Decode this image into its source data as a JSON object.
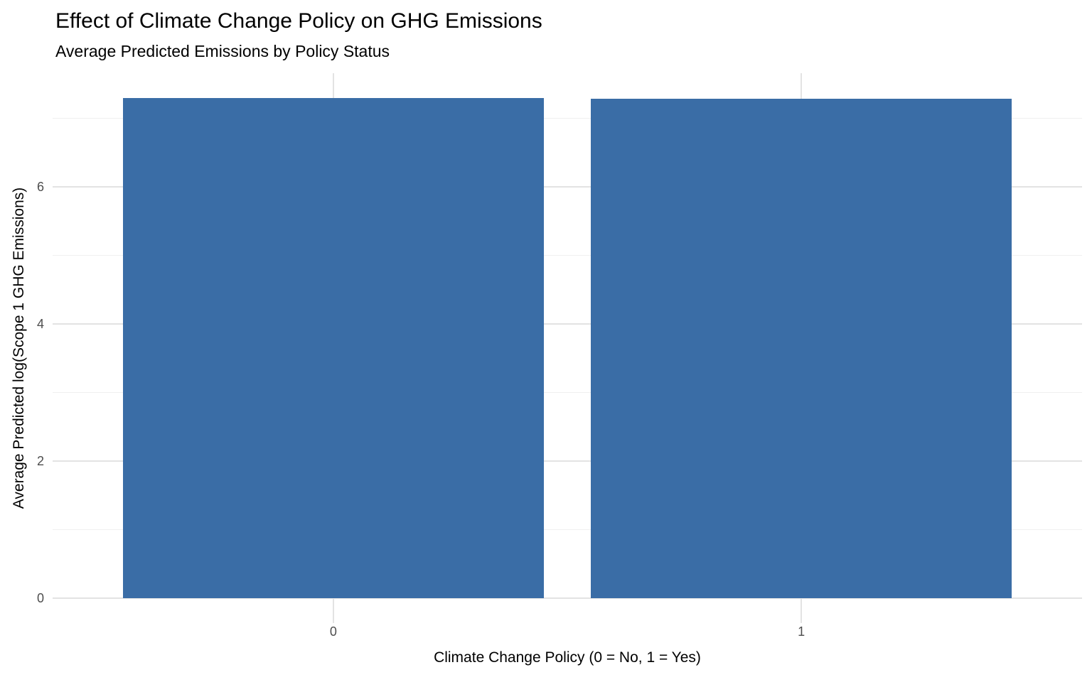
{
  "chart_data": {
    "type": "bar",
    "title": "Effect of Climate Change Policy on GHG Emissions",
    "subtitle": "Average Predicted Emissions by Policy Status",
    "categories": [
      "0",
      "1"
    ],
    "values": [
      7.29,
      7.28
    ],
    "xlabel": "Climate Change Policy (0 = No, 1 = Yes)",
    "ylabel": "Average Predicted log(Scope 1 GHG Emissions)",
    "ylim": [
      0,
      7.29
    ],
    "yticks_major": [
      0,
      2,
      4,
      6
    ],
    "yticks_minor": [
      1,
      3,
      5,
      7
    ],
    "grid": "on",
    "legend": "none",
    "colors": {
      "bar_fill": "#3A6DA6",
      "grid_major": "#E3E3E3",
      "grid_minor": "#F0F0F0",
      "tick_label": "#4D4D4D",
      "title_text": "#000000",
      "panel_background": "#FFFFFF"
    }
  }
}
